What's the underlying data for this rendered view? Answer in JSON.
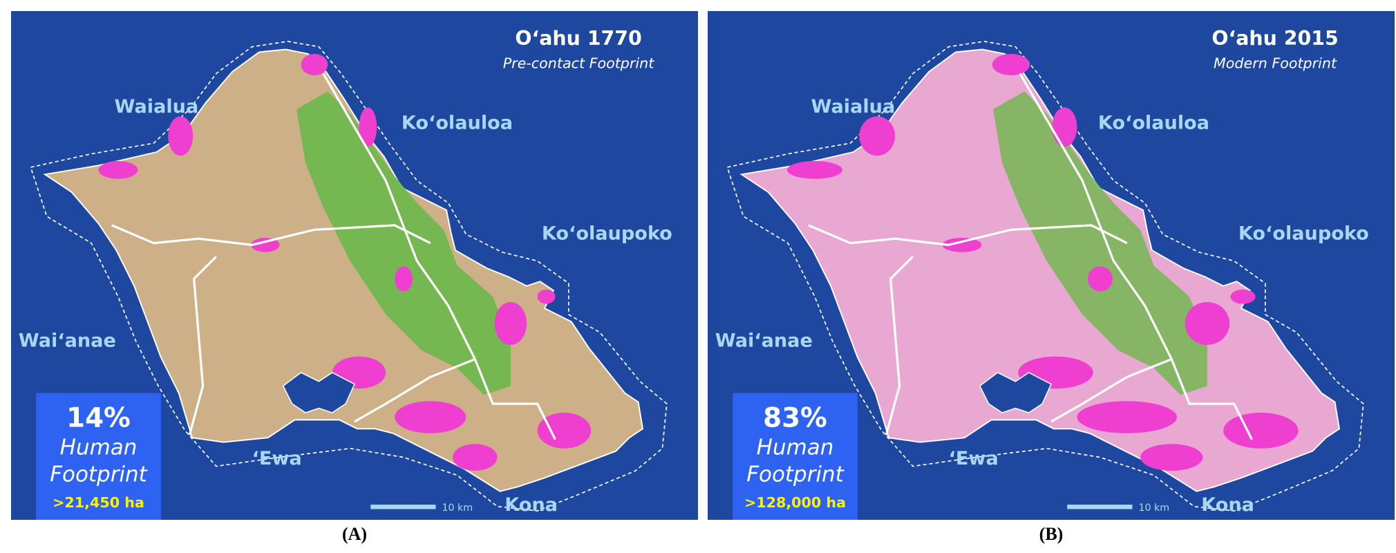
{
  "colors": {
    "ocean": "#1E48A0",
    "stat_box": "#2D63F0",
    "region_label": "#A9D6F2",
    "footprint": "#EE3FD0",
    "highlight": "#FFF200"
  },
  "panels": [
    {
      "title": "O‘ahu 1770",
      "subtitle": "Pre-contact Footprint",
      "stat": {
        "percent": "14%",
        "line1": "Human",
        "line2": "Footprint",
        "area": ">21,450 ha"
      },
      "footprint_percent": 14,
      "land_color": "#CDB088",
      "scale": "10 km",
      "caption": "(A)"
    },
    {
      "title": "O‘ahu 2015",
      "subtitle": "Modern Footprint",
      "stat": {
        "percent": "83%",
        "line1": "Human",
        "line2": "Footprint",
        "area": ">128,000 ha"
      },
      "footprint_percent": 83,
      "land_color": "#E8A8D2",
      "scale": "10 km",
      "caption": "(B)"
    }
  ],
  "regions": {
    "waialua": "Waialua",
    "koolauloa": "Ko‘olauloa",
    "koolaupoko": "Ko‘olaupoko",
    "waianae": "Wai‘anae",
    "ewa": "‘Ewa",
    "kona": "Kona"
  }
}
